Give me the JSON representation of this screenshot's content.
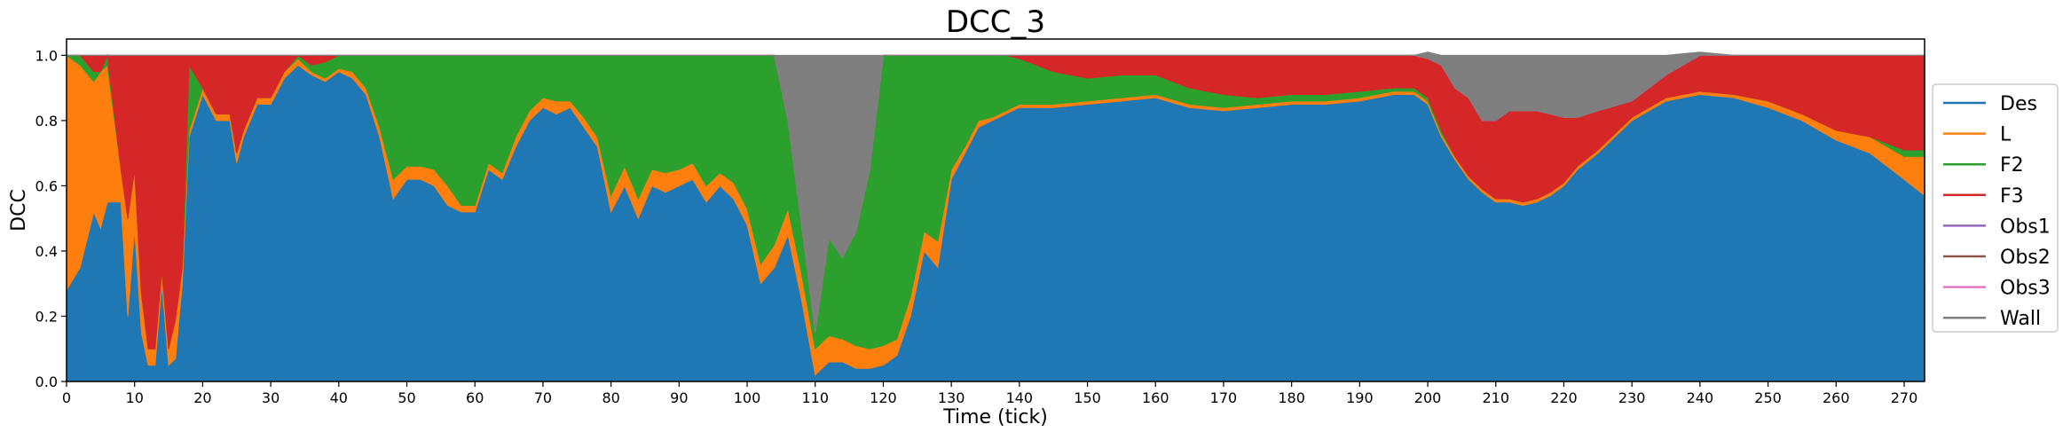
{
  "chart_data": {
    "type": "area",
    "stacked": true,
    "title": "DCC_3",
    "xlabel": "Time (tick)",
    "ylabel": "DCC",
    "xlim": [
      0,
      273
    ],
    "ylim": [
      0,
      1.05
    ],
    "x_ticks": [
      0,
      10,
      20,
      30,
      40,
      50,
      60,
      70,
      80,
      90,
      100,
      110,
      120,
      130,
      140,
      150,
      160,
      170,
      180,
      190,
      200,
      210,
      220,
      230,
      240,
      250,
      260,
      270
    ],
    "x_tick_labels": [
      "0",
      "10",
      "20",
      "30",
      "40",
      "50",
      "60",
      "70",
      "80",
      "90",
      "100",
      "110",
      "120",
      "130",
      "140",
      "150",
      "160",
      "170",
      "180",
      "190",
      "200",
      "210",
      "220",
      "230",
      "240",
      "250",
      "260",
      "270"
    ],
    "y_ticks": [
      0.0,
      0.2,
      0.4,
      0.6,
      0.8,
      1.0
    ],
    "y_tick_labels": [
      "0.0",
      "0.2",
      "0.4",
      "0.6",
      "0.8",
      "1.0"
    ],
    "grid": false,
    "legend_position": "right, outside plot area",
    "x": [
      0,
      2,
      4,
      5,
      6,
      8,
      9,
      10,
      11,
      12,
      13,
      14,
      15,
      16,
      17,
      18,
      20,
      22,
      24,
      25,
      26,
      28,
      30,
      32,
      34,
      36,
      38,
      40,
      42,
      44,
      46,
      48,
      50,
      52,
      54,
      56,
      58,
      60,
      62,
      64,
      66,
      68,
      70,
      72,
      74,
      76,
      78,
      80,
      82,
      84,
      86,
      88,
      90,
      92,
      94,
      96,
      98,
      100,
      102,
      104,
      106,
      108,
      110,
      112,
      114,
      116,
      118,
      120,
      122,
      124,
      126,
      128,
      130,
      132,
      134,
      136,
      138,
      140,
      145,
      150,
      155,
      160,
      165,
      170,
      175,
      180,
      185,
      190,
      195,
      198,
      200,
      202,
      204,
      206,
      208,
      210,
      212,
      214,
      216,
      218,
      220,
      222,
      225,
      230,
      235,
      240,
      245,
      250,
      255,
      260,
      265,
      270,
      273
    ],
    "series": [
      {
        "name": "Des",
        "color": "#1f77b4",
        "values": [
          0.28,
          0.35,
          0.52,
          0.47,
          0.55,
          0.55,
          0.2,
          0.47,
          0.15,
          0.05,
          0.05,
          0.3,
          0.05,
          0.07,
          0.3,
          0.75,
          0.88,
          0.8,
          0.8,
          0.67,
          0.75,
          0.85,
          0.85,
          0.93,
          0.97,
          0.94,
          0.92,
          0.95,
          0.93,
          0.88,
          0.75,
          0.56,
          0.62,
          0.62,
          0.6,
          0.54,
          0.52,
          0.52,
          0.65,
          0.62,
          0.72,
          0.8,
          0.84,
          0.82,
          0.84,
          0.78,
          0.72,
          0.52,
          0.6,
          0.5,
          0.6,
          0.58,
          0.6,
          0.62,
          0.55,
          0.6,
          0.56,
          0.48,
          0.3,
          0.35,
          0.45,
          0.25,
          0.02,
          0.06,
          0.06,
          0.04,
          0.04,
          0.05,
          0.08,
          0.2,
          0.4,
          0.35,
          0.62,
          0.7,
          0.78,
          0.8,
          0.82,
          0.84,
          0.84,
          0.85,
          0.86,
          0.87,
          0.84,
          0.83,
          0.84,
          0.85,
          0.85,
          0.86,
          0.88,
          0.88,
          0.85,
          0.75,
          0.68,
          0.62,
          0.58,
          0.55,
          0.55,
          0.54,
          0.55,
          0.57,
          0.6,
          0.65,
          0.7,
          0.8,
          0.86,
          0.88,
          0.87,
          0.84,
          0.8,
          0.74,
          0.7,
          0.62,
          0.57
        ]
      },
      {
        "name": "L",
        "color": "#ff7f0e",
        "values": [
          0.72,
          0.62,
          0.4,
          0.48,
          0.42,
          0.1,
          0.3,
          0.18,
          0.12,
          0.05,
          0.05,
          0.04,
          0.05,
          0.12,
          0.05,
          0.02,
          0.02,
          0.02,
          0.02,
          0.03,
          0.02,
          0.02,
          0.02,
          0.02,
          0.02,
          0.01,
          0.01,
          0.01,
          0.02,
          0.02,
          0.03,
          0.06,
          0.04,
          0.04,
          0.05,
          0.06,
          0.02,
          0.02,
          0.02,
          0.02,
          0.03,
          0.03,
          0.03,
          0.04,
          0.02,
          0.03,
          0.03,
          0.05,
          0.06,
          0.06,
          0.05,
          0.06,
          0.05,
          0.05,
          0.05,
          0.04,
          0.05,
          0.05,
          0.06,
          0.07,
          0.08,
          0.08,
          0.08,
          0.08,
          0.07,
          0.07,
          0.06,
          0.06,
          0.05,
          0.06,
          0.06,
          0.08,
          0.03,
          0.02,
          0.02,
          0.01,
          0.01,
          0.01,
          0.01,
          0.01,
          0.01,
          0.01,
          0.01,
          0.01,
          0.01,
          0.01,
          0.01,
          0.01,
          0.01,
          0.01,
          0.01,
          0.01,
          0.01,
          0.01,
          0.01,
          0.01,
          0.01,
          0.01,
          0.01,
          0.01,
          0.01,
          0.01,
          0.01,
          0.01,
          0.01,
          0.01,
          0.01,
          0.02,
          0.02,
          0.03,
          0.05,
          0.07,
          0.12
        ]
      },
      {
        "name": "F2",
        "color": "#2ca02c",
        "values": [
          0.0,
          0.03,
          0.03,
          0.0,
          0.03,
          0.0,
          0.0,
          0.0,
          0.0,
          0.0,
          0.0,
          0.0,
          0.0,
          0.0,
          0.0,
          0.2,
          0.0,
          0.0,
          0.0,
          0.0,
          0.0,
          0.0,
          0.0,
          0.0,
          0.01,
          0.02,
          0.05,
          0.04,
          0.05,
          0.1,
          0.22,
          0.38,
          0.34,
          0.34,
          0.35,
          0.4,
          0.46,
          0.46,
          0.33,
          0.36,
          0.25,
          0.17,
          0.13,
          0.14,
          0.14,
          0.19,
          0.25,
          0.43,
          0.34,
          0.44,
          0.35,
          0.36,
          0.35,
          0.33,
          0.4,
          0.36,
          0.39,
          0.47,
          0.64,
          0.58,
          0.27,
          0.15,
          0.05,
          0.3,
          0.25,
          0.35,
          0.55,
          0.89,
          0.87,
          0.74,
          0.54,
          0.57,
          0.35,
          0.28,
          0.2,
          0.19,
          0.17,
          0.14,
          0.1,
          0.07,
          0.07,
          0.06,
          0.05,
          0.04,
          0.02,
          0.02,
          0.02,
          0.02,
          0.01,
          0.01,
          0.01,
          0.01,
          0.0,
          0.0,
          0.0,
          0.0,
          0.0,
          0.0,
          0.0,
          0.0,
          0.0,
          0.0,
          0.0,
          0.0,
          0.0,
          0.0,
          0.0,
          0.0,
          0.0,
          0.0,
          0.0,
          0.02,
          0.02
        ]
      },
      {
        "name": "F3",
        "color": "#d62728",
        "values": [
          0.0,
          0.0,
          0.05,
          0.05,
          0.0,
          0.35,
          0.5,
          0.35,
          0.73,
          0.9,
          0.9,
          0.66,
          0.9,
          0.81,
          0.65,
          0.03,
          0.1,
          0.18,
          0.18,
          0.3,
          0.23,
          0.13,
          0.13,
          0.05,
          0.0,
          0.03,
          0.02,
          0.0,
          0.0,
          0.0,
          0.0,
          0.0,
          0.0,
          0.0,
          0.0,
          0.0,
          0.0,
          0.0,
          0.0,
          0.0,
          0.0,
          0.0,
          0.0,
          0.0,
          0.0,
          0.0,
          0.0,
          0.0,
          0.0,
          0.0,
          0.0,
          0.0,
          0.0,
          0.0,
          0.0,
          0.0,
          0.0,
          0.0,
          0.0,
          0.0,
          0.0,
          0.0,
          0.0,
          0.0,
          0.0,
          0.0,
          0.0,
          0.0,
          0.0,
          0.0,
          0.0,
          0.0,
          0.0,
          0.0,
          0.0,
          0.0,
          0.0,
          0.01,
          0.05,
          0.07,
          0.06,
          0.06,
          0.1,
          0.12,
          0.13,
          0.12,
          0.12,
          0.11,
          0.1,
          0.1,
          0.12,
          0.2,
          0.21,
          0.24,
          0.21,
          0.24,
          0.27,
          0.28,
          0.27,
          0.24,
          0.2,
          0.15,
          0.12,
          0.05,
          0.07,
          0.11,
          0.12,
          0.14,
          0.18,
          0.23,
          0.25,
          0.29,
          0.29
        ]
      },
      {
        "name": "Obs1",
        "color": "#9467bd",
        "values": [
          0.0,
          0.0,
          0.0,
          0.0,
          0.0,
          0.0,
          0.0,
          0.0,
          0.0,
          0.0,
          0.0,
          0.0,
          0.0,
          0.0,
          0.0,
          0.0,
          0.0,
          0.0,
          0.0,
          0.0,
          0.0,
          0.0,
          0.0,
          0.0,
          0.0,
          0.0,
          0.0,
          0.0,
          0.0,
          0.0,
          0.0,
          0.0,
          0.0,
          0.0,
          0.0,
          0.0,
          0.0,
          0.0,
          0.0,
          0.0,
          0.0,
          0.0,
          0.0,
          0.0,
          0.0,
          0.0,
          0.0,
          0.0,
          0.0,
          0.0,
          0.0,
          0.0,
          0.0,
          0.0,
          0.0,
          0.0,
          0.0,
          0.0,
          0.0,
          0.0,
          0.0,
          0.0,
          0.0,
          0.0,
          0.0,
          0.0,
          0.0,
          0.0,
          0.0,
          0.0,
          0.0,
          0.0,
          0.0,
          0.0,
          0.0,
          0.0,
          0.0,
          0.0,
          0.0,
          0.0,
          0.0,
          0.0,
          0.0,
          0.0,
          0.0,
          0.0,
          0.0,
          0.0,
          0.0,
          0.0,
          0.0,
          0.0,
          0.0,
          0.0,
          0.0,
          0.0,
          0.0,
          0.0,
          0.0,
          0.0,
          0.0,
          0.0,
          0.0,
          0.0,
          0.0,
          0.0,
          0.0,
          0.0,
          0.0,
          0.0,
          0.0,
          0.0,
          0.0
        ]
      },
      {
        "name": "Obs2",
        "color": "#8c564b",
        "values": [
          0.0,
          0.0,
          0.0,
          0.0,
          0.0,
          0.0,
          0.0,
          0.0,
          0.0,
          0.0,
          0.0,
          0.0,
          0.0,
          0.0,
          0.0,
          0.0,
          0.0,
          0.0,
          0.0,
          0.0,
          0.0,
          0.0,
          0.0,
          0.0,
          0.0,
          0.0,
          0.0,
          0.0,
          0.0,
          0.0,
          0.0,
          0.0,
          0.0,
          0.0,
          0.0,
          0.0,
          0.0,
          0.0,
          0.0,
          0.0,
          0.0,
          0.0,
          0.0,
          0.0,
          0.0,
          0.0,
          0.0,
          0.0,
          0.0,
          0.0,
          0.0,
          0.0,
          0.0,
          0.0,
          0.0,
          0.0,
          0.0,
          0.0,
          0.0,
          0.0,
          0.0,
          0.0,
          0.0,
          0.0,
          0.0,
          0.0,
          0.0,
          0.0,
          0.0,
          0.0,
          0.0,
          0.0,
          0.0,
          0.0,
          0.0,
          0.0,
          0.0,
          0.0,
          0.0,
          0.0,
          0.0,
          0.0,
          0.0,
          0.0,
          0.0,
          0.0,
          0.0,
          0.0,
          0.0,
          0.0,
          0.0,
          0.0,
          0.0,
          0.0,
          0.0,
          0.0,
          0.0,
          0.0,
          0.0,
          0.0,
          0.0,
          0.0,
          0.0,
          0.0,
          0.0,
          0.0,
          0.0,
          0.0,
          0.0,
          0.0,
          0.0,
          0.0,
          0.0
        ]
      },
      {
        "name": "Obs3",
        "color": "#e377c2",
        "values": [
          0.0,
          0.0,
          0.0,
          0.0,
          0.0,
          0.0,
          0.0,
          0.0,
          0.0,
          0.0,
          0.0,
          0.0,
          0.0,
          0.0,
          0.0,
          0.0,
          0.0,
          0.0,
          0.0,
          0.0,
          0.0,
          0.0,
          0.0,
          0.0,
          0.0,
          0.0,
          0.0,
          0.0,
          0.0,
          0.0,
          0.0,
          0.0,
          0.0,
          0.0,
          0.0,
          0.0,
          0.0,
          0.0,
          0.0,
          0.0,
          0.0,
          0.0,
          0.0,
          0.0,
          0.0,
          0.0,
          0.0,
          0.0,
          0.0,
          0.0,
          0.0,
          0.0,
          0.0,
          0.0,
          0.0,
          0.0,
          0.0,
          0.0,
          0.0,
          0.0,
          0.0,
          0.0,
          0.0,
          0.0,
          0.0,
          0.0,
          0.0,
          0.0,
          0.0,
          0.0,
          0.0,
          0.0,
          0.0,
          0.0,
          0.0,
          0.0,
          0.0,
          0.0,
          0.0,
          0.0,
          0.0,
          0.0,
          0.0,
          0.0,
          0.0,
          0.0,
          0.0,
          0.0,
          0.0,
          0.0,
          0.0,
          0.0,
          0.0,
          0.0,
          0.0,
          0.0,
          0.0,
          0.0,
          0.0,
          0.0,
          0.0,
          0.0,
          0.0,
          0.0,
          0.0,
          0.0,
          0.0,
          0.0,
          0.0,
          0.0,
          0.0,
          0.0,
          0.0
        ]
      },
      {
        "name": "Wall",
        "color": "#7f7f7f",
        "values": [
          0.0,
          0.0,
          0.0,
          0.0,
          0.0,
          0.0,
          0.0,
          0.0,
          0.0,
          0.0,
          0.0,
          0.0,
          0.0,
          0.0,
          0.0,
          0.0,
          0.0,
          0.0,
          0.0,
          0.0,
          0.0,
          0.0,
          0.0,
          0.0,
          0.0,
          0.0,
          0.0,
          0.0,
          0.0,
          0.0,
          0.0,
          0.0,
          0.0,
          0.0,
          0.0,
          0.0,
          0.0,
          0.0,
          0.0,
          0.0,
          0.0,
          0.0,
          0.0,
          0.0,
          0.0,
          0.0,
          0.0,
          0.0,
          0.0,
          0.0,
          0.0,
          0.0,
          0.0,
          0.0,
          0.0,
          0.0,
          0.0,
          0.0,
          0.0,
          0.0,
          0.2,
          0.52,
          0.85,
          0.56,
          0.62,
          0.54,
          0.35,
          0.0,
          0.0,
          0.0,
          0.0,
          0.0,
          0.0,
          0.0,
          0.0,
          0.0,
          0.0,
          0.0,
          0.0,
          0.0,
          0.0,
          0.0,
          0.0,
          0.0,
          0.0,
          0.0,
          0.0,
          0.0,
          0.0,
          0.0,
          0.02,
          0.03,
          0.1,
          0.13,
          0.2,
          0.2,
          0.17,
          0.17,
          0.17,
          0.18,
          0.19,
          0.19,
          0.17,
          0.14,
          0.06,
          0.01,
          0.0,
          0.0,
          0.0,
          0.0,
          0.0,
          0.0,
          0.0
        ]
      }
    ]
  }
}
